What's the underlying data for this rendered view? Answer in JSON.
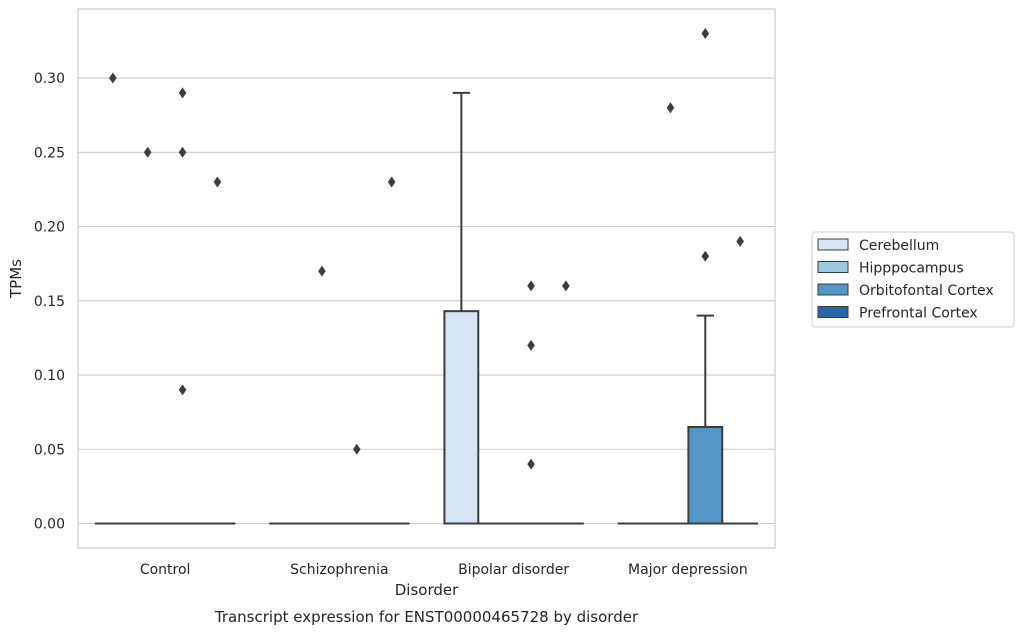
{
  "chart_data": {
    "type": "box",
    "title": "Transcript expression for ENST00000465728 by disorder",
    "xlabel": "Disorder",
    "ylabel": "TPMs",
    "categories": [
      "Control",
      "Schizophrenia",
      "Bipolar disorder",
      "Major depression"
    ],
    "yticks": [
      "0.00",
      "0.05",
      "0.10",
      "0.15",
      "0.20",
      "0.25",
      "0.30"
    ],
    "ylim": [
      -0.0165,
      0.3465
    ],
    "grid": true,
    "legend_position": "right",
    "series": [
      {
        "name": "Cerebellum",
        "color": "#d6e5f3",
        "boxes": [
          {
            "category": "Control",
            "q1": 0.0,
            "median": 0.0,
            "q3": 0.0,
            "whisker_low": 0.0,
            "whisker_high": 0.0,
            "outliers": [
              0.3
            ]
          },
          {
            "category": "Schizophrenia",
            "q1": 0.0,
            "median": 0.0,
            "q3": 0.0,
            "whisker_low": 0.0,
            "whisker_high": 0.0,
            "outliers": []
          },
          {
            "category": "Bipolar disorder",
            "q1": 0.0,
            "median": 0.0,
            "q3": 0.143,
            "whisker_low": 0.0,
            "whisker_high": 0.29,
            "outliers": []
          },
          {
            "category": "Major depression",
            "q1": 0.0,
            "median": 0.0,
            "q3": 0.0,
            "whisker_low": 0.0,
            "whisker_high": 0.0,
            "outliers": []
          }
        ]
      },
      {
        "name": "Hipppocampus",
        "color": "#9bc7df",
        "boxes": [
          {
            "category": "Control",
            "q1": 0.0,
            "median": 0.0,
            "q3": 0.0,
            "whisker_low": 0.0,
            "whisker_high": 0.0,
            "outliers": [
              0.25
            ]
          },
          {
            "category": "Schizophrenia",
            "q1": 0.0,
            "median": 0.0,
            "q3": 0.0,
            "whisker_low": 0.0,
            "whisker_high": 0.0,
            "outliers": [
              0.17
            ]
          },
          {
            "category": "Bipolar disorder",
            "q1": 0.0,
            "median": 0.0,
            "q3": 0.0,
            "whisker_low": 0.0,
            "whisker_high": 0.0,
            "outliers": []
          },
          {
            "category": "Major depression",
            "q1": 0.0,
            "median": 0.0,
            "q3": 0.0,
            "whisker_low": 0.0,
            "whisker_high": 0.0,
            "outliers": [
              0.28
            ]
          }
        ]
      },
      {
        "name": "Orbitofontal Cortex",
        "color": "#5497c6",
        "boxes": [
          {
            "category": "Control",
            "q1": 0.0,
            "median": 0.0,
            "q3": 0.0,
            "whisker_low": 0.0,
            "whisker_high": 0.0,
            "outliers": [
              0.29,
              0.25,
              0.09
            ]
          },
          {
            "category": "Schizophrenia",
            "q1": 0.0,
            "median": 0.0,
            "q3": 0.0,
            "whisker_low": 0.0,
            "whisker_high": 0.0,
            "outliers": [
              0.05
            ]
          },
          {
            "category": "Bipolar disorder",
            "q1": 0.0,
            "median": 0.0,
            "q3": 0.0,
            "whisker_low": 0.0,
            "whisker_high": 0.0,
            "outliers": [
              0.16,
              0.12,
              0.04
            ]
          },
          {
            "category": "Major depression",
            "q1": 0.0,
            "median": 0.0,
            "q3": 0.065,
            "whisker_low": 0.0,
            "whisker_high": 0.14,
            "outliers": [
              0.33,
              0.18
            ]
          }
        ]
      },
      {
        "name": "Prefrontal Cortex",
        "color": "#2766a8",
        "boxes": [
          {
            "category": "Control",
            "q1": 0.0,
            "median": 0.0,
            "q3": 0.0,
            "whisker_low": 0.0,
            "whisker_high": 0.0,
            "outliers": [
              0.23
            ]
          },
          {
            "category": "Schizophrenia",
            "q1": 0.0,
            "median": 0.0,
            "q3": 0.0,
            "whisker_low": 0.0,
            "whisker_high": 0.0,
            "outliers": [
              0.23
            ]
          },
          {
            "category": "Bipolar disorder",
            "q1": 0.0,
            "median": 0.0,
            "q3": 0.0,
            "whisker_low": 0.0,
            "whisker_high": 0.0,
            "outliers": [
              0.16
            ]
          },
          {
            "category": "Major depression",
            "q1": 0.0,
            "median": 0.0,
            "q3": 0.0,
            "whisker_low": 0.0,
            "whisker_high": 0.0,
            "outliers": [
              0.19
            ]
          }
        ]
      }
    ]
  }
}
